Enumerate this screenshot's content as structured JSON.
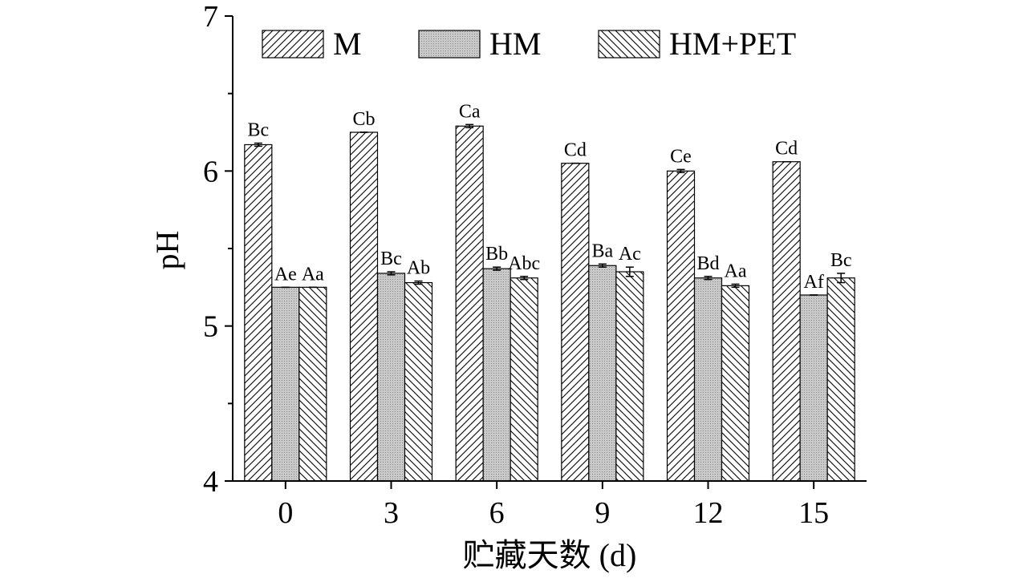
{
  "chart_data": {
    "type": "bar",
    "title": "",
    "xlabel": "贮藏天数 (d)",
    "ylabel": "pH",
    "ylim": [
      4,
      7
    ],
    "y_ticks": [
      4,
      5,
      6,
      7
    ],
    "y_tick_labels": [
      "4",
      "5",
      "6",
      "7"
    ],
    "categories": [
      "0",
      "3",
      "6",
      "9",
      "12",
      "15"
    ],
    "legend_position": "top",
    "grid": false,
    "series": [
      {
        "name": "M",
        "pattern": "diagonal-up",
        "values": [
          6.17,
          6.25,
          6.29,
          6.05,
          6.0,
          6.06
        ],
        "errors": [
          0.01,
          0.0,
          0.01,
          0.0,
          0.01,
          0.0
        ],
        "labels": [
          "Bc",
          "Cb",
          "Ca",
          "Cd",
          "Ce",
          "Cd"
        ]
      },
      {
        "name": "HM",
        "pattern": "dots-gray",
        "values": [
          5.25,
          5.34,
          5.37,
          5.39,
          5.31,
          5.2
        ],
        "errors": [
          0.0,
          0.01,
          0.01,
          0.01,
          0.01,
          0.0
        ],
        "labels": [
          "Ae",
          "Bc",
          "Bb",
          "Ba",
          "Bd",
          "Af"
        ]
      },
      {
        "name": "HM+PET",
        "pattern": "diagonal-down",
        "values": [
          5.25,
          5.28,
          5.31,
          5.35,
          5.26,
          5.31
        ],
        "errors": [
          0.0,
          0.01,
          0.01,
          0.03,
          0.01,
          0.03
        ],
        "labels": [
          "Aa",
          "Ab",
          "Abc",
          "Ac",
          "Aa",
          "Bc"
        ]
      }
    ]
  }
}
